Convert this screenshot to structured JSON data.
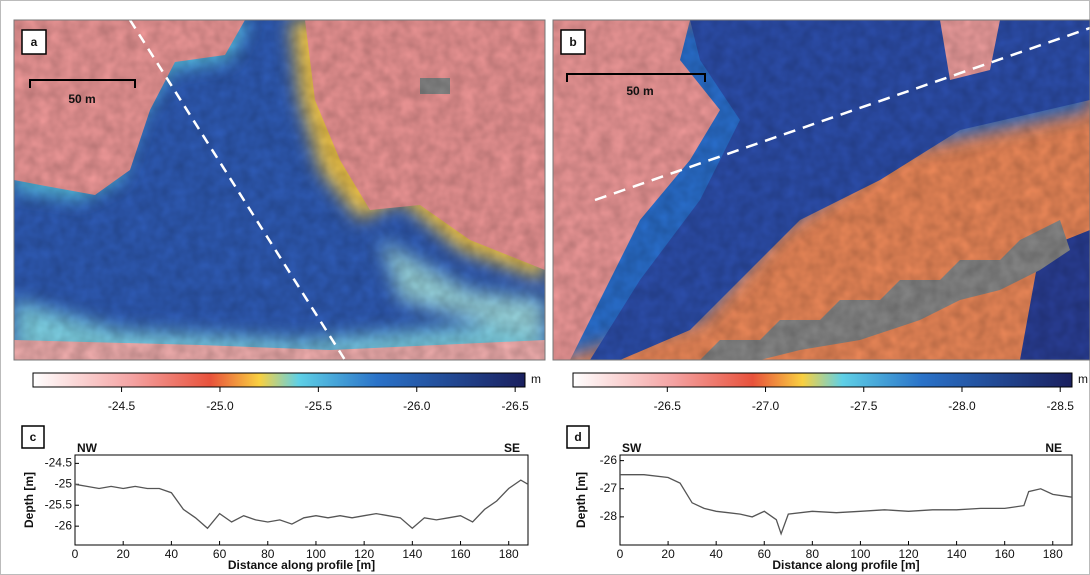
{
  "chart_data": [
    {
      "type": "map",
      "label": "a",
      "scale_bar": "50 m",
      "colorbar": {
        "unit": "m",
        "lim": [
          -24.05,
          -26.55
        ],
        "ticks": [
          -24.5,
          {
            "value": -25,
            "label": "-25.0"
          },
          -25.5,
          {
            "value": -26,
            "label": "-26.0"
          },
          -26.5
        ]
      }
    },
    {
      "type": "map",
      "label": "b",
      "scale_bar": "50 m",
      "colorbar": {
        "unit": "m",
        "lim": [
          -26.02,
          -28.56
        ],
        "ticks": [
          -26.5,
          {
            "value": -27,
            "label": "-27.0"
          },
          -27.5,
          {
            "value": -28,
            "label": "-28.0"
          },
          -28.5
        ]
      }
    },
    {
      "type": "line",
      "label": "c",
      "start_label": "NW",
      "end_label": "SE",
      "x_label": "Distance along profile [m]",
      "y_label": "Depth [m]",
      "color": "#555555",
      "x": [
        0,
        5,
        10,
        15,
        20,
        25,
        30,
        35,
        40,
        45,
        50,
        55,
        60,
        65,
        70,
        75,
        80,
        85,
        90,
        95,
        100,
        105,
        110,
        115,
        120,
        125,
        130,
        135,
        140,
        145,
        150,
        155,
        160,
        165,
        170,
        175,
        180,
        185,
        188
      ],
      "values": [
        -25.0,
        -25.05,
        -25.1,
        -25.05,
        -25.1,
        -25.05,
        -25.1,
        -25.1,
        -25.2,
        -25.6,
        -25.8,
        -26.05,
        -25.7,
        -25.9,
        -25.75,
        -25.85,
        -25.9,
        -25.85,
        -25.95,
        -25.8,
        -25.75,
        -25.8,
        -25.75,
        -25.8,
        -25.75,
        -25.7,
        -25.75,
        -25.8,
        -26.05,
        -25.8,
        -25.85,
        -25.8,
        -25.75,
        -25.9,
        -25.6,
        -25.4,
        -25.1,
        -24.9,
        -25.0
      ],
      "xlim": [
        0,
        188
      ],
      "ylim": [
        -26.45,
        -24.3
      ],
      "xticks": [
        0,
        20,
        40,
        60,
        80,
        100,
        120,
        140,
        160,
        180
      ],
      "yticks": [
        -24.5,
        -25,
        -25.5,
        -26
      ]
    },
    {
      "type": "line",
      "label": "d",
      "start_label": "SW",
      "end_label": "NE",
      "x_label": "Distance along profile [m]",
      "y_label": "Depth [m]",
      "color": "#555555",
      "x": [
        0,
        10,
        20,
        25,
        30,
        35,
        40,
        45,
        50,
        55,
        60,
        65,
        67,
        70,
        80,
        90,
        100,
        110,
        120,
        130,
        140,
        150,
        160,
        168,
        170,
        175,
        180,
        188
      ],
      "values": [
        -26.5,
        -26.5,
        -26.6,
        -26.8,
        -27.5,
        -27.7,
        -27.8,
        -27.85,
        -27.9,
        -28.0,
        -27.8,
        -28.1,
        -28.6,
        -27.9,
        -27.8,
        -27.85,
        -27.8,
        -27.75,
        -27.8,
        -27.75,
        -27.75,
        -27.7,
        -27.7,
        -27.6,
        -27.1,
        -27.0,
        -27.2,
        -27.3
      ],
      "xlim": [
        0,
        188
      ],
      "ylim": [
        -29.0,
        -25.8
      ],
      "xticks": [
        0,
        20,
        40,
        60,
        80,
        100,
        120,
        140,
        160,
        180
      ],
      "yticks": [
        -26,
        -27,
        -28
      ]
    }
  ]
}
